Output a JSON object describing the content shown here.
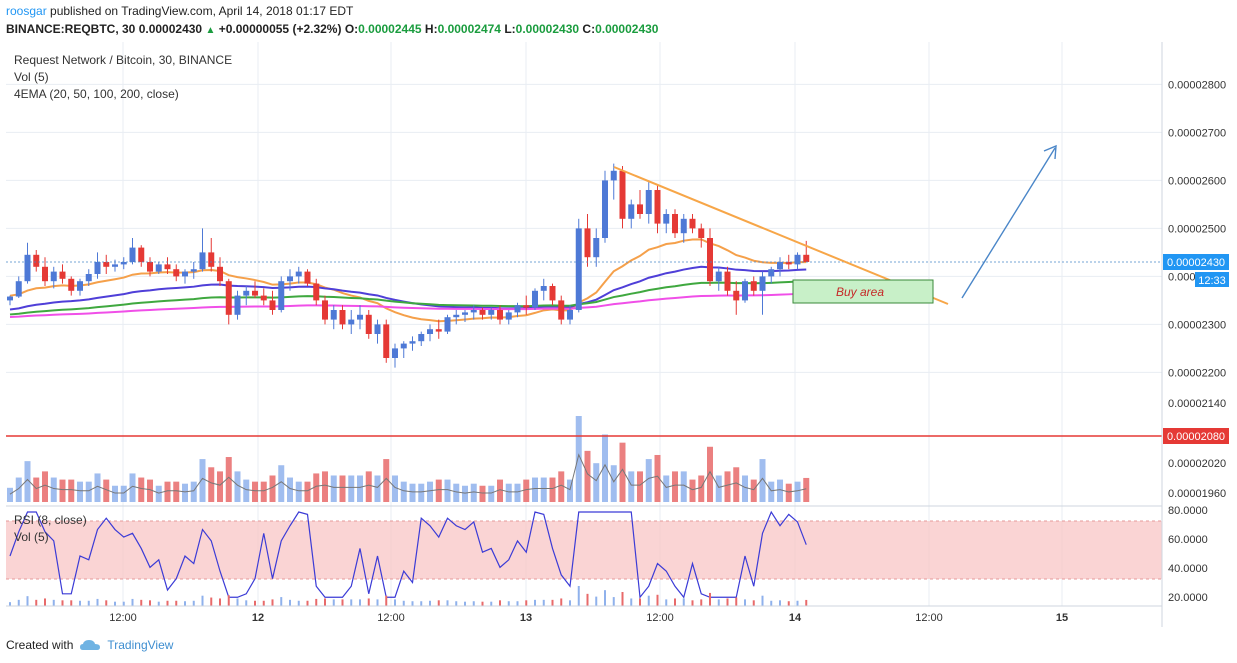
{
  "header": {
    "user": "roosgar",
    "published": "published on TradingView.com, April 14, 2018 01:17 EDT",
    "symbol": "BINANCE:REQBTC, 30",
    "last": "0.00002430",
    "change": "+0.00000055 (+2.32%)",
    "o_label": "O:",
    "o": "0.00002445",
    "h_label": "H:",
    "h": "0.00002474",
    "l_label": "L:",
    "l": "0.00002430",
    "c_label": "C:",
    "c": "0.00002430"
  },
  "legend": {
    "main": "Request Network / Bitcoin, 30, BINANCE",
    "vol": "Vol (5)",
    "ema": "4EMA (20, 50, 100, 200, close)",
    "rsi": "RSI (8, close)",
    "rsi_vol": "Vol (5)"
  },
  "annotation": {
    "buy_area": "Buy area"
  },
  "last_price_badge": "0.00002430",
  "countdown_badge": "12:33",
  "hline_badge": "0.00002080",
  "footer": {
    "created": "Created with",
    "brand": "TradingView"
  },
  "colors": {
    "up": "#4e79d6",
    "down": "#e53935",
    "ema20": "#f5a04a",
    "ema50": "#4f3fd8",
    "ema100": "#3fa83f",
    "ema200": "#f04fe8",
    "trendline": "#f7a648",
    "arrow": "#4a86c8",
    "hline": "#e53935",
    "rsi": "#3b3bd6",
    "rsi_band": "#f8c6c6"
  },
  "chart_data": {
    "type": "candlestick",
    "y_ticks": [
      "0.00002800",
      "0.00002700",
      "0.00002600",
      "0.00002500",
      "0.00002400",
      "0.00002300",
      "0.00002200"
    ],
    "vol_ticks": [
      "0.00002140",
      "0.00002020",
      "0.00001960"
    ],
    "rsi_ticks": [
      "80.0000",
      "60.0000",
      "40.0000",
      "20.0000"
    ],
    "x_ticks": [
      "12:00",
      "12",
      "12:00",
      "13",
      "12:00",
      "14",
      "12:00",
      "15"
    ],
    "ylim": [
      2.16e-05,
      2.84e-05
    ],
    "horizontal_line": 2.08e-05,
    "candles": [
      [
        2350,
        2360,
        2340,
        2358
      ],
      [
        2358,
        2400,
        2355,
        2390
      ],
      [
        2390,
        2470,
        2385,
        2445
      ],
      [
        2445,
        2455,
        2410,
        2420
      ],
      [
        2420,
        2440,
        2380,
        2390
      ],
      [
        2390,
        2420,
        2375,
        2410
      ],
      [
        2410,
        2425,
        2385,
        2395
      ],
      [
        2395,
        2400,
        2360,
        2370
      ],
      [
        2370,
        2395,
        2360,
        2390
      ],
      [
        2390,
        2415,
        2380,
        2405
      ],
      [
        2405,
        2450,
        2395,
        2430
      ],
      [
        2430,
        2445,
        2405,
        2420
      ],
      [
        2420,
        2435,
        2410,
        2425
      ],
      [
        2425,
        2440,
        2415,
        2430
      ],
      [
        2430,
        2480,
        2425,
        2460
      ],
      [
        2460,
        2465,
        2420,
        2430
      ],
      [
        2430,
        2440,
        2400,
        2410
      ],
      [
        2410,
        2430,
        2405,
        2425
      ],
      [
        2425,
        2440,
        2405,
        2415
      ],
      [
        2415,
        2425,
        2390,
        2400
      ],
      [
        2400,
        2415,
        2385,
        2410
      ],
      [
        2410,
        2430,
        2395,
        2415
      ],
      [
        2415,
        2500,
        2410,
        2450
      ],
      [
        2450,
        2480,
        2410,
        2420
      ],
      [
        2420,
        2440,
        2380,
        2390
      ],
      [
        2390,
        2395,
        2300,
        2320
      ],
      [
        2320,
        2370,
        2310,
        2360
      ],
      [
        2360,
        2380,
        2340,
        2370
      ],
      [
        2370,
        2390,
        2355,
        2360
      ],
      [
        2360,
        2375,
        2340,
        2350
      ],
      [
        2350,
        2370,
        2320,
        2330
      ],
      [
        2330,
        2400,
        2325,
        2390
      ],
      [
        2390,
        2415,
        2370,
        2400
      ],
      [
        2400,
        2420,
        2385,
        2410
      ],
      [
        2410,
        2415,
        2380,
        2385
      ],
      [
        2385,
        2395,
        2340,
        2350
      ],
      [
        2350,
        2360,
        2300,
        2310
      ],
      [
        2310,
        2340,
        2290,
        2330
      ],
      [
        2330,
        2340,
        2290,
        2300
      ],
      [
        2300,
        2330,
        2280,
        2310
      ],
      [
        2310,
        2340,
        2290,
        2320
      ],
      [
        2320,
        2330,
        2270,
        2280
      ],
      [
        2280,
        2310,
        2260,
        2300
      ],
      [
        2300,
        2310,
        2220,
        2230
      ],
      [
        2230,
        2260,
        2210,
        2250
      ],
      [
        2250,
        2265,
        2230,
        2260
      ],
      [
        2260,
        2275,
        2245,
        2265
      ],
      [
        2265,
        2285,
        2255,
        2280
      ],
      [
        2280,
        2300,
        2265,
        2290
      ],
      [
        2290,
        2310,
        2270,
        2285
      ],
      [
        2285,
        2320,
        2280,
        2315
      ],
      [
        2315,
        2330,
        2300,
        2320
      ],
      [
        2320,
        2330,
        2305,
        2325
      ],
      [
        2325,
        2340,
        2310,
        2330
      ],
      [
        2330,
        2335,
        2310,
        2320
      ],
      [
        2320,
        2335,
        2310,
        2330
      ],
      [
        2330,
        2340,
        2300,
        2310
      ],
      [
        2310,
        2330,
        2300,
        2325
      ],
      [
        2325,
        2345,
        2315,
        2340
      ],
      [
        2340,
        2360,
        2320,
        2335
      ],
      [
        2335,
        2375,
        2330,
        2370
      ],
      [
        2370,
        2395,
        2350,
        2380
      ],
      [
        2380,
        2385,
        2340,
        2350
      ],
      [
        2350,
        2360,
        2300,
        2310
      ],
      [
        2310,
        2340,
        2300,
        2330
      ],
      [
        2330,
        2520,
        2325,
        2500
      ],
      [
        2500,
        2530,
        2420,
        2440
      ],
      [
        2440,
        2500,
        2420,
        2480
      ],
      [
        2480,
        2620,
        2470,
        2600
      ],
      [
        2600,
        2635,
        2560,
        2620
      ],
      [
        2620,
        2630,
        2500,
        2520
      ],
      [
        2520,
        2560,
        2500,
        2550
      ],
      [
        2550,
        2580,
        2520,
        2530
      ],
      [
        2530,
        2600,
        2510,
        2580
      ],
      [
        2580,
        2590,
        2490,
        2510
      ],
      [
        2510,
        2540,
        2490,
        2530
      ],
      [
        2530,
        2540,
        2480,
        2490
      ],
      [
        2490,
        2530,
        2470,
        2520
      ],
      [
        2520,
        2530,
        2490,
        2500
      ],
      [
        2500,
        2510,
        2460,
        2480
      ],
      [
        2480,
        2500,
        2380,
        2390
      ],
      [
        2390,
        2420,
        2370,
        2410
      ],
      [
        2410,
        2420,
        2360,
        2370
      ],
      [
        2370,
        2390,
        2320,
        2350
      ],
      [
        2350,
        2395,
        2345,
        2390
      ],
      [
        2390,
        2400,
        2360,
        2370
      ],
      [
        2370,
        2410,
        2320,
        2400
      ],
      [
        2400,
        2420,
        2385,
        2415
      ],
      [
        2415,
        2440,
        2400,
        2430
      ],
      [
        2430,
        2445,
        2415,
        2425
      ],
      [
        2425,
        2450,
        2415,
        2445
      ],
      [
        2445,
        2474,
        2430,
        2430
      ]
    ]
  }
}
